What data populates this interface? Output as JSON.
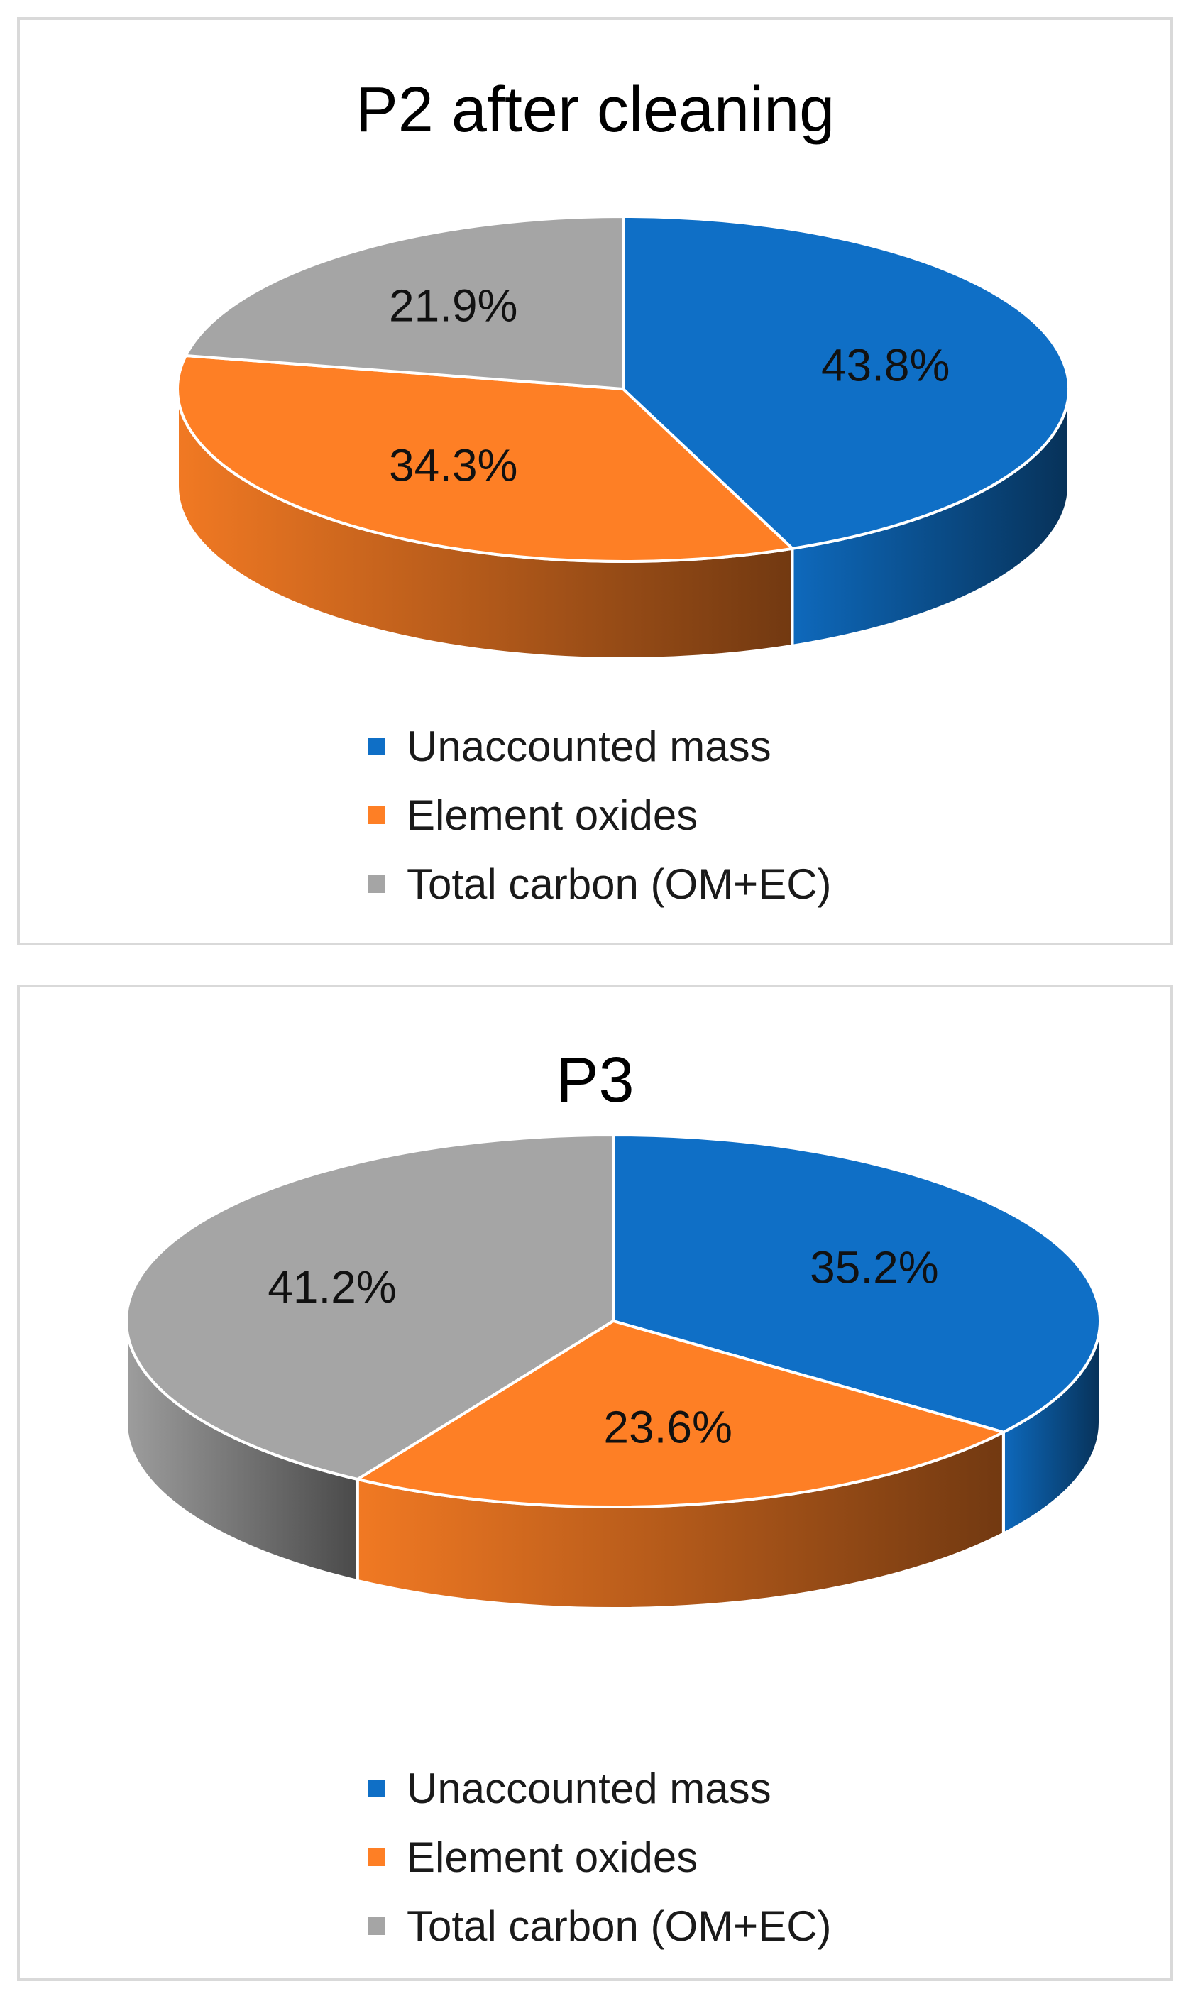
{
  "colors": {
    "unaccounted": "#0f6fc6",
    "oxides": "#fe7f25",
    "carbon": "#a5a5a5"
  },
  "chart_data": [
    {
      "type": "pie",
      "title": "P2 after cleaning",
      "categories": [
        "Unaccounted mass",
        "Element oxides",
        "Total carbon (OM+EC)"
      ],
      "values": [
        43.8,
        34.3,
        21.9
      ],
      "labels": [
        "43.8%",
        "34.3%",
        "21.9%"
      ],
      "legend_position": "bottom"
    },
    {
      "type": "pie",
      "title": "P3",
      "categories": [
        "Unaccounted mass",
        "Element oxides",
        "Total carbon (OM+EC)"
      ],
      "values": [
        35.2,
        23.6,
        41.2
      ],
      "labels": [
        "35.2%",
        "23.6%",
        "41.2%"
      ],
      "legend_position": "bottom"
    }
  ]
}
